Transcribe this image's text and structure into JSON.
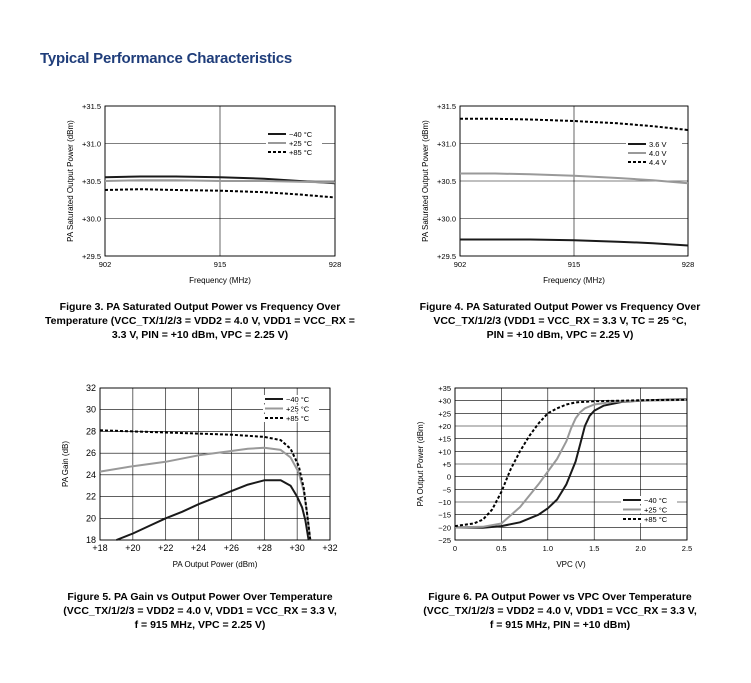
{
  "heading": "Typical Performance Characteristics",
  "captions": {
    "fig3": [
      "Figure 3. PA Saturated Output Power vs Frequency Over",
      "Temperature (VCC_TX/1/2/3 = VDD2 = 4.0 V, VDD1 = VCC_RX =",
      "3.3 V, PIN = +10 dBm, VPC = 2.25 V)"
    ],
    "fig4": [
      "Figure 4. PA Saturated Output Power vs Frequency Over",
      "VCC_TX/1/2/3 (VDD1 = VCC_RX = 3.3 V, TC = 25 °C,",
      "PIN = +10 dBm, VPC = 2.25 V)"
    ],
    "fig5": [
      "Figure 5. PA Gain vs Output Power Over Temperature",
      "(VCC_TX/1/2/3 = VDD2 = 4.0 V, VDD1 = VCC_RX = 3.3 V,",
      "f = 915 MHz, VPC = 2.25 V)"
    ],
    "fig6": [
      "Figure 6. PA Output Power vs VPC Over Temperature",
      "(VCC_TX/1/2/3 = VDD2 = 4.0 V, VDD1 = VCC_RX = 3.3 V,",
      "f = 915 MHz, PIN = +10 dBm)"
    ]
  },
  "colors": {
    "heading": "#1f3d7a",
    "dark": "#1a1a1a",
    "gray": "#999999",
    "dashed": "#000000",
    "grid": "#000000"
  },
  "chart_data": [
    {
      "id": "fig3",
      "type": "line",
      "title": "Figure 3. PA Saturated Output Power vs Frequency Over Temperature",
      "xlabel": "Frequency (MHz)",
      "ylabel": "PA Saturated Output Power (dBm)",
      "xlim": [
        902,
        928
      ],
      "ylim": [
        29.5,
        31.5
      ],
      "xticks": [
        902,
        915,
        928
      ],
      "xtick_labels": [
        "902",
        "915",
        "928"
      ],
      "yticks": [
        29.5,
        30.0,
        30.5,
        31.0,
        31.5
      ],
      "ytick_labels": [
        "+29.5",
        "+30.0",
        "+30.5",
        "+31.0",
        "+31.5"
      ],
      "grid": true,
      "legend_position": "top-right",
      "series": [
        {
          "name": "−40 °C",
          "style": "solid",
          "color": "#1a1a1a",
          "x": [
            902,
            906,
            910,
            915,
            920,
            924,
            928
          ],
          "y": [
            30.55,
            30.56,
            30.56,
            30.55,
            30.53,
            30.5,
            30.47
          ]
        },
        {
          "name": "+25 °C",
          "style": "solid",
          "color": "#999999",
          "x": [
            902,
            906,
            910,
            915,
            920,
            924,
            928
          ],
          "y": [
            30.5,
            30.51,
            30.51,
            30.5,
            30.5,
            30.49,
            30.48
          ]
        },
        {
          "name": "+85 °C",
          "style": "dashed",
          "color": "#000000",
          "x": [
            902,
            906,
            910,
            915,
            920,
            924,
            928
          ],
          "y": [
            30.38,
            30.39,
            30.38,
            30.37,
            30.35,
            30.32,
            30.28
          ]
        }
      ]
    },
    {
      "id": "fig4",
      "type": "line",
      "title": "Figure 4. PA Saturated Output Power vs Frequency Over VCC_TX/1/2/3",
      "xlabel": "Frequency (MHz)",
      "ylabel": "PA Saturated Output Power (dBm)",
      "xlim": [
        902,
        928
      ],
      "ylim": [
        29.5,
        31.5
      ],
      "xticks": [
        902,
        915,
        928
      ],
      "xtick_labels": [
        "902",
        "915",
        "928"
      ],
      "yticks": [
        29.5,
        30.0,
        30.5,
        31.0,
        31.5
      ],
      "ytick_labels": [
        "+29.5",
        "+30.0",
        "+30.5",
        "+31.0",
        "+31.5"
      ],
      "grid": true,
      "legend_position": "top-right",
      "series": [
        {
          "name": "3.6 V",
          "style": "solid",
          "color": "#1a1a1a",
          "x": [
            902,
            906,
            910,
            915,
            920,
            924,
            928
          ],
          "y": [
            29.72,
            29.72,
            29.72,
            29.71,
            29.69,
            29.67,
            29.64
          ]
        },
        {
          "name": "4.0 V",
          "style": "solid",
          "color": "#999999",
          "x": [
            902,
            906,
            910,
            915,
            920,
            924,
            928
          ],
          "y": [
            30.6,
            30.6,
            30.59,
            30.57,
            30.54,
            30.51,
            30.47
          ]
        },
        {
          "name": "4.4 V",
          "style": "dashed",
          "color": "#000000",
          "x": [
            902,
            906,
            910,
            915,
            920,
            924,
            928
          ],
          "y": [
            31.33,
            31.33,
            31.32,
            31.3,
            31.27,
            31.23,
            31.18
          ]
        }
      ]
    },
    {
      "id": "fig5",
      "type": "line",
      "title": "Figure 5. PA Gain vs Output Power Over Temperature",
      "xlabel": "PA Output Power (dBm)",
      "ylabel": "PA Gain (dB)",
      "xlim": [
        18,
        32
      ],
      "ylim": [
        18,
        32
      ],
      "xticks": [
        18,
        20,
        22,
        24,
        26,
        28,
        30,
        32
      ],
      "xtick_labels": [
        "+18",
        "+20",
        "+22",
        "+24",
        "+26",
        "+28",
        "+30",
        "+32"
      ],
      "yticks": [
        18,
        20,
        22,
        24,
        26,
        28,
        30,
        32
      ],
      "ytick_labels": [
        "18",
        "20",
        "22",
        "24",
        "26",
        "28",
        "30",
        "32"
      ],
      "grid": true,
      "legend_position": "top-right",
      "series": [
        {
          "name": "−40 °C",
          "style": "solid",
          "color": "#1a1a1a",
          "x": [
            19,
            20,
            21,
            22,
            23,
            24,
            25,
            26,
            27,
            28,
            29,
            29.6,
            30.0,
            30.3,
            30.5,
            30.7
          ],
          "y": [
            18,
            18.6,
            19.3,
            20.0,
            20.6,
            21.3,
            21.9,
            22.5,
            23.1,
            23.5,
            23.5,
            23.0,
            22.0,
            21.0,
            19.8,
            18.0
          ]
        },
        {
          "name": "+25 °C",
          "style": "solid",
          "color": "#999999",
          "x": [
            18,
            20,
            22,
            24,
            26,
            27,
            28,
            29,
            29.6,
            30.1,
            30.4,
            30.6,
            30.8
          ],
          "y": [
            24.3,
            24.8,
            25.2,
            25.8,
            26.2,
            26.4,
            26.5,
            26.3,
            25.6,
            24.2,
            22.5,
            20.5,
            18.0
          ]
        },
        {
          "name": "+85 °C",
          "style": "dashed",
          "color": "#000000",
          "x": [
            18,
            20,
            22,
            24,
            26,
            28,
            29,
            29.6,
            30.1,
            30.4,
            30.6,
            30.8
          ],
          "y": [
            28.1,
            28.0,
            27.9,
            27.8,
            27.7,
            27.5,
            27.2,
            26.4,
            24.8,
            22.8,
            20.5,
            18.0
          ]
        }
      ]
    },
    {
      "id": "fig6",
      "type": "line",
      "title": "Figure 6. PA Output Power vs VPC Over Temperature",
      "xlabel": "VPC (V)",
      "ylabel": "PA Output Power (dBm)",
      "xlim": [
        0,
        2.5
      ],
      "ylim": [
        -25,
        35
      ],
      "xticks": [
        0,
        0.5,
        1.0,
        1.5,
        2.0,
        2.5
      ],
      "xtick_labels": [
        "0",
        "0.5",
        "1.0",
        "1.5",
        "2.0",
        "2.5"
      ],
      "yticks": [
        -25,
        -20,
        -15,
        -10,
        -5,
        0,
        5,
        10,
        15,
        20,
        25,
        30,
        35
      ],
      "ytick_labels": [
        "−25",
        "−20",
        "−15",
        "−10",
        "−5",
        "0",
        "+5",
        "+10",
        "+15",
        "+20",
        "+25",
        "+30",
        "+35"
      ],
      "grid": true,
      "legend_position": "bottom-right",
      "series": [
        {
          "name": "−40 °C",
          "style": "solid",
          "color": "#1a1a1a",
          "x": [
            0,
            0.3,
            0.5,
            0.7,
            0.9,
            1.0,
            1.1,
            1.2,
            1.3,
            1.35,
            1.4,
            1.45,
            1.5,
            1.6,
            1.8,
            2.0,
            2.2,
            2.5
          ],
          "y": [
            -20,
            -20.2,
            -19.5,
            -18,
            -15,
            -12.5,
            -9,
            -3,
            6,
            13,
            20,
            24,
            26,
            28,
            29.5,
            30,
            30.3,
            30.5
          ]
        },
        {
          "name": "+25 °C",
          "style": "solid",
          "color": "#999999",
          "x": [
            0,
            0.3,
            0.5,
            0.7,
            0.9,
            1.0,
            1.1,
            1.2,
            1.25,
            1.3,
            1.35,
            1.4,
            1.5,
            1.7,
            2.0,
            2.5
          ],
          "y": [
            -20,
            -19.8,
            -18.5,
            -12,
            -3,
            2,
            7,
            14,
            19,
            23,
            25.5,
            27,
            28.5,
            29.5,
            30,
            30.3
          ]
        },
        {
          "name": "+85 °C",
          "style": "dashed",
          "color": "#000000",
          "x": [
            0,
            0.2,
            0.3,
            0.4,
            0.5,
            0.6,
            0.7,
            0.8,
            0.9,
            1.0,
            1.1,
            1.2,
            1.3,
            1.5,
            1.8,
            2.0,
            2.5
          ],
          "y": [
            -19.5,
            -18.5,
            -17,
            -13,
            -6,
            3,
            10,
            16,
            21,
            25,
            27,
            28.5,
            29.3,
            29.8,
            30,
            30.2,
            30.4
          ]
        }
      ]
    }
  ]
}
